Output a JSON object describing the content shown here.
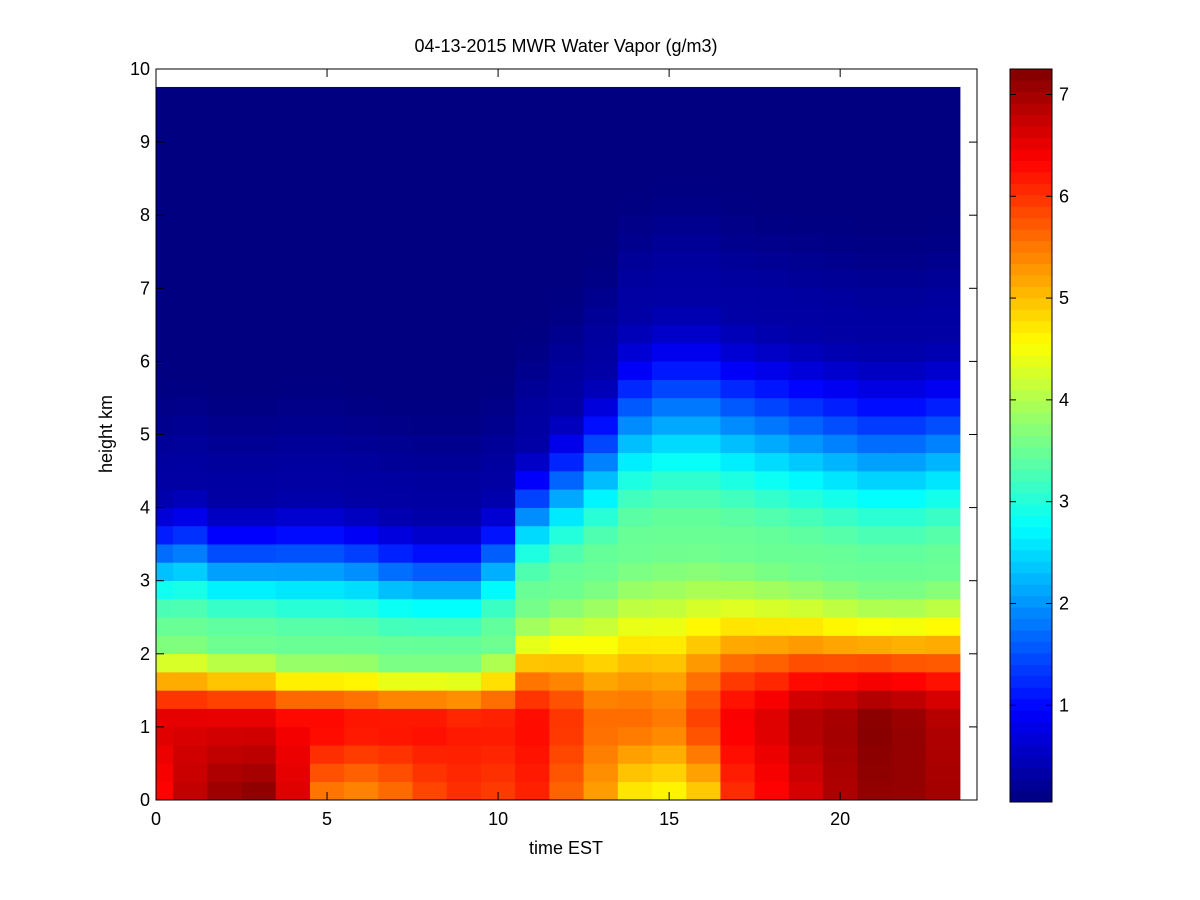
{
  "chart_data": {
    "type": "heatmap",
    "title": "04-13-2015 MWR Water Vapor (g/m3)",
    "xlabel": "time EST",
    "ylabel": "height km",
    "xlim": [
      0,
      24
    ],
    "ylim": [
      0,
      10
    ],
    "x_ticks": [
      0,
      5,
      10,
      15,
      20
    ],
    "y_ticks": [
      0,
      1,
      2,
      3,
      4,
      5,
      6,
      7,
      8,
      9,
      10
    ],
    "colorbar": {
      "colormap": "jet",
      "range": [
        0.05,
        7.25
      ],
      "ticks": [
        1,
        2,
        3,
        4,
        5,
        6,
        7
      ]
    },
    "grid": false,
    "time_bins": [
      0,
      1,
      2,
      3,
      4,
      5,
      6,
      7,
      8,
      9,
      10,
      11,
      12,
      13,
      14,
      15,
      16,
      17,
      18,
      19,
      20,
      21,
      22,
      23
    ],
    "data_top_km": 9.75,
    "profiles": [
      {
        "time": 0,
        "surface": 6.3,
        "peak": 6.6,
        "mid_km": 2.3,
        "top_km": 4.3
      },
      {
        "time": 1,
        "surface": 6.8,
        "peak": 6.6,
        "mid_km": 2.3,
        "top_km": 4.4
      },
      {
        "time": 2,
        "surface": 7.1,
        "peak": 6.6,
        "mid_km": 2.2,
        "top_km": 4.2
      },
      {
        "time": 3,
        "surface": 7.2,
        "peak": 6.6,
        "mid_km": 2.2,
        "top_km": 4.2
      },
      {
        "time": 4,
        "surface": 6.6,
        "peak": 6.4,
        "mid_km": 2.1,
        "top_km": 4.3
      },
      {
        "time": 5,
        "surface": 5.4,
        "peak": 6.4,
        "mid_km": 2.1,
        "top_km": 4.3
      },
      {
        "time": 6,
        "surface": 5.3,
        "peak": 6.3,
        "mid_km": 2.1,
        "top_km": 4.2
      },
      {
        "time": 7,
        "surface": 5.5,
        "peak": 6.3,
        "mid_km": 2.0,
        "top_km": 4.1
      },
      {
        "time": 8,
        "surface": 5.8,
        "peak": 6.3,
        "mid_km": 2.0,
        "top_km": 4.0
      },
      {
        "time": 9,
        "surface": 6.0,
        "peak": 6.2,
        "mid_km": 2.0,
        "top_km": 4.0
      },
      {
        "time": 10,
        "surface": 5.9,
        "peak": 6.2,
        "mid_km": 2.2,
        "top_km": 4.3
      },
      {
        "time": 11,
        "surface": 6.1,
        "peak": 6.3,
        "mid_km": 2.8,
        "top_km": 5.0
      },
      {
        "time": 12,
        "surface": 5.6,
        "peak": 6.0,
        "mid_km": 3.0,
        "top_km": 5.5
      },
      {
        "time": 13,
        "surface": 5.2,
        "peak": 5.6,
        "mid_km": 3.2,
        "top_km": 6.0
      },
      {
        "time": 14,
        "surface": 4.6,
        "peak": 5.6,
        "mid_km": 3.5,
        "top_km": 6.8
      },
      {
        "time": 15,
        "surface": 4.5,
        "peak": 5.5,
        "mid_km": 3.6,
        "top_km": 7.0
      },
      {
        "time": 16,
        "surface": 4.8,
        "peak": 5.9,
        "mid_km": 3.6,
        "top_km": 7.0
      },
      {
        "time": 17,
        "surface": 6.0,
        "peak": 6.4,
        "mid_km": 3.5,
        "top_km": 6.8
      },
      {
        "time": 18,
        "surface": 6.3,
        "peak": 6.6,
        "mid_km": 3.4,
        "top_km": 6.7
      },
      {
        "time": 19,
        "surface": 6.6,
        "peak": 6.9,
        "mid_km": 3.3,
        "top_km": 6.6
      },
      {
        "time": 20,
        "surface": 6.9,
        "peak": 7.0,
        "mid_km": 3.2,
        "top_km": 6.5
      },
      {
        "time": 21,
        "surface": 7.1,
        "peak": 7.2,
        "mid_km": 3.1,
        "top_km": 6.4
      },
      {
        "time": 22,
        "surface": 7.1,
        "peak": 7.1,
        "mid_km": 3.1,
        "top_km": 6.4
      },
      {
        "time": 23,
        "surface": 7.0,
        "peak": 6.9,
        "mid_km": 3.2,
        "top_km": 6.5
      }
    ]
  }
}
